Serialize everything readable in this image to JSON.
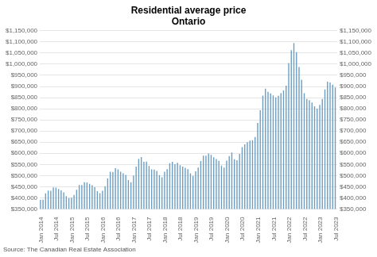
{
  "chart_data": {
    "type": "bar",
    "title": "Residential average price\nOntario",
    "annotations": [
      "Source: The Canadian Real Estate Association"
    ],
    "color": "#6b9dc2",
    "grid": true,
    "categories": [
      "Jan 2014",
      null,
      null,
      null,
      null,
      null,
      "Jul 2014",
      null,
      null,
      null,
      null,
      null,
      "Jan 2015",
      null,
      null,
      null,
      null,
      null,
      "Jul 2015",
      null,
      null,
      null,
      null,
      null,
      "Jan 2016",
      null,
      null,
      null,
      null,
      null,
      "Jul 2016",
      null,
      null,
      null,
      null,
      null,
      "Jan 2017",
      null,
      null,
      null,
      null,
      null,
      "Jul 2017",
      null,
      null,
      null,
      null,
      null,
      "Jan 2018",
      null,
      null,
      null,
      null,
      null,
      "Jul 2018",
      null,
      null,
      null,
      null,
      null,
      "Jan 2019",
      null,
      null,
      null,
      null,
      null,
      "Jul 2019",
      null,
      null,
      null,
      null,
      null,
      "Jan 2020",
      null,
      null,
      null,
      null,
      null,
      "Jul 2020",
      null,
      null,
      null,
      null,
      null,
      "Jan 2021",
      null,
      null,
      null,
      null,
      null,
      "Jul 2021",
      null,
      null,
      null,
      null,
      null,
      "Jan 2022",
      null,
      null,
      null,
      null,
      null,
      "Jul 2022",
      null,
      null,
      null,
      null,
      null,
      "Jan 2023",
      null,
      null,
      null,
      null,
      null,
      "Jul 2023"
    ],
    "values": [
      391000,
      392000,
      420000,
      433000,
      432000,
      447000,
      446000,
      440000,
      434000,
      425000,
      408000,
      399000,
      401000,
      413000,
      436000,
      458000,
      458000,
      470000,
      469000,
      463000,
      457000,
      448000,
      430000,
      421000,
      432000,
      452000,
      487000,
      517000,
      516000,
      533000,
      528000,
      517000,
      510000,
      503000,
      480000,
      470000,
      500000,
      540000,
      575000,
      583000,
      562000,
      563000,
      543000,
      528000,
      527000,
      521000,
      502000,
      492000,
      517000,
      529000,
      556000,
      562000,
      551000,
      557000,
      547000,
      540000,
      535000,
      529000,
      510000,
      499000,
      519000,
      536000,
      565000,
      589000,
      589000,
      599000,
      593000,
      582000,
      574000,
      566000,
      545000,
      536000,
      567000,
      588000,
      604000,
      573000,
      569000,
      597000,
      628000,
      640000,
      650000,
      657000,
      659000,
      673000,
      736000,
      793000,
      859000,
      890000,
      876000,
      869000,
      860000,
      851000,
      858000,
      870000,
      882000,
      904000,
      1005000,
      1063000,
      1095000,
      1054000,
      987000,
      930000,
      870000,
      844000,
      839000,
      828000,
      811000,
      800000,
      817000,
      844000,
      887000,
      921000,
      918000,
      908000,
      896000
    ],
    "ylim": [
      350000,
      1150000
    ],
    "yticks": [
      {
        "value": 350000,
        "label": "$350,000"
      },
      {
        "value": 400000,
        "label": "$400,000"
      },
      {
        "value": 450000,
        "label": "$450,000"
      },
      {
        "value": 500000,
        "label": "$500,000"
      },
      {
        "value": 550000,
        "label": "$550,000"
      },
      {
        "value": 600000,
        "label": "$600,000"
      },
      {
        "value": 650000,
        "label": "$650,000"
      },
      {
        "value": 700000,
        "label": "$700,000"
      },
      {
        "value": 750000,
        "label": "$750,000"
      },
      {
        "value": 800000,
        "label": "$800,000"
      },
      {
        "value": 850000,
        "label": "$850,000"
      },
      {
        "value": 900000,
        "label": "$900,000"
      },
      {
        "value": 950000,
        "label": "$950,000"
      },
      {
        "value": 1000000,
        "label": "$1,000,000"
      },
      {
        "value": 1050000,
        "label": "$1,050,000"
      },
      {
        "value": 1100000,
        "label": "$1,100,000"
      },
      {
        "value": 1150000,
        "label": "$1,150,000"
      }
    ],
    "y2lim": [
      350000,
      1150000
    ],
    "y2ticks": [
      {
        "value": 350000,
        "label": "$350,000"
      },
      {
        "value": 400000,
        "label": "$400,000"
      },
      {
        "value": 450000,
        "label": "$450,000"
      },
      {
        "value": 500000,
        "label": "$500,000"
      },
      {
        "value": 550000,
        "label": "$550,000"
      },
      {
        "value": 600000,
        "label": "$600,000"
      },
      {
        "value": 650000,
        "label": "$650,000"
      },
      {
        "value": 700000,
        "label": "$700,000"
      },
      {
        "value": 750000,
        "label": "$750,000"
      },
      {
        "value": 800000,
        "label": "$800,000"
      },
      {
        "value": 850000,
        "label": "$850,000"
      },
      {
        "value": 900000,
        "label": "$900,000"
      },
      {
        "value": 950000,
        "label": "$950,000"
      },
      {
        "value": 1000000,
        "label": "$1,000,000"
      },
      {
        "value": 1050000,
        "label": "$1,050,000"
      },
      {
        "value": 1100000,
        "label": "$1,100,000"
      },
      {
        "value": 1150000,
        "label": "$1,150,000"
      }
    ]
  }
}
